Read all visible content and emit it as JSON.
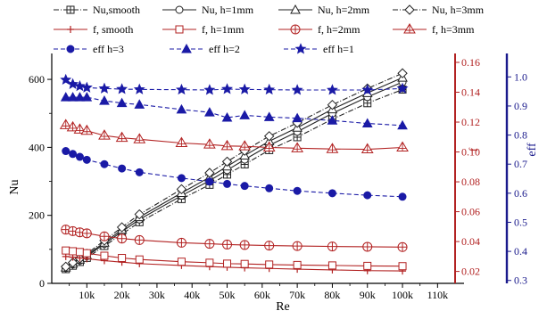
{
  "chart_data": {
    "type": "line",
    "xlabel": "Re",
    "ylabel_left": "Nu",
    "ylabel_f": "f",
    "ylabel_eff": "eff",
    "xlim": [
      0,
      115000
    ],
    "xticks": [
      10000,
      20000,
      30000,
      40000,
      50000,
      60000,
      70000,
      80000,
      90000,
      100000,
      110000
    ],
    "xtick_labels": [
      "10k",
      "20k",
      "30k",
      "40k",
      "50k",
      "60k",
      "70k",
      "80k",
      "90k",
      "100k",
      "110k"
    ],
    "ylim_nu": [
      0,
      650
    ],
    "yticks_nu": [
      0,
      200,
      400,
      600
    ],
    "ylim_f": [
      0.012,
      0.16
    ],
    "yticks_f": [
      0.02,
      0.04,
      0.06,
      0.08,
      0.1,
      0.12,
      0.14,
      0.16
    ],
    "ytick_f_labels": [
      "0.02",
      "0.04",
      "0.06",
      "0.08",
      "0.10",
      "0.12",
      "0.14",
      "0.16"
    ],
    "ylim_eff": [
      0.29,
      1.05
    ],
    "yticks_eff": [
      0.3,
      0.4,
      0.5,
      0.6,
      0.7,
      0.8,
      0.9,
      1.0
    ],
    "ytick_eff_labels": [
      "0.3",
      "0.4",
      "0.5",
      "0.6",
      "0.7",
      "0.8",
      "0.9",
      "1.0"
    ],
    "colors": {
      "nu": "#222222",
      "f": "#b22222",
      "eff": "#1a1aa6",
      "f_axis": "#b22222",
      "eff_axis": "#1a1a8c"
    },
    "legend": [
      [
        {
          "label": "Nu,smooth",
          "series": "nu_smooth"
        },
        {
          "label": "Nu, h=1mm",
          "series": "nu_h1"
        },
        {
          "label": "Nu, h=2mm",
          "series": "nu_h2"
        },
        {
          "label": "Nu, h=3mm",
          "series": "nu_h3"
        }
      ],
      [
        {
          "label": "f, smooth",
          "series": "f_smooth"
        },
        {
          "label": "f, h=1mm",
          "series": "f_h1"
        },
        {
          "label": "f, h=2mm",
          "series": "f_h2"
        },
        {
          "label": "f, h=3mm",
          "series": "f_h3"
        }
      ],
      [
        {
          "label": "eff h=3",
          "series": "eff_h3"
        },
        {
          "label": "eff h=2",
          "series": "eff_h2"
        },
        {
          "label": "eff h=1",
          "series": "eff_h1"
        }
      ]
    ],
    "series": [
      {
        "id": "nu_smooth",
        "name": "Nu,smooth",
        "axis": "nu",
        "marker": "square-cross",
        "dash": "6,2,1,2",
        "x": [
          4000,
          6000,
          8000,
          10000,
          15000,
          20000,
          25000,
          37000,
          45000,
          50000,
          55000,
          62000,
          70000,
          80000,
          90000,
          100000
        ],
        "y": [
          42,
          52,
          63,
          75,
          110,
          145,
          180,
          248,
          290,
          320,
          350,
          392,
          430,
          483,
          530,
          570
        ]
      },
      {
        "id": "nu_h1",
        "name": "Nu, h=1mm",
        "axis": "nu",
        "marker": "circle",
        "dash": "",
        "x": [
          4000,
          6000,
          8000,
          10000,
          15000,
          20000,
          25000,
          37000,
          45000,
          50000,
          55000,
          62000,
          70000,
          80000,
          90000,
          100000
        ],
        "y": [
          45,
          56,
          67,
          80,
          116,
          152,
          188,
          258,
          302,
          333,
          364,
          406,
          446,
          500,
          548,
          592
        ]
      },
      {
        "id": "nu_h2",
        "name": "Nu, h=2mm",
        "axis": "nu",
        "marker": "triangle",
        "dash": "",
        "x": [
          4000,
          6000,
          8000,
          10000,
          15000,
          20000,
          25000,
          37000,
          45000,
          50000,
          55000,
          62000,
          70000,
          80000,
          90000,
          100000
        ],
        "y": [
          47,
          58,
          70,
          83,
          120,
          158,
          195,
          266,
          312,
          344,
          376,
          418,
          458,
          512,
          560,
          605
        ]
      },
      {
        "id": "nu_h3",
        "name": "Nu, h=3mm",
        "axis": "nu",
        "marker": "diamond",
        "dash": "6,2,1,2",
        "x": [
          4000,
          6000,
          8000,
          10000,
          15000,
          20000,
          25000,
          37000,
          45000,
          50000,
          55000,
          62000,
          70000,
          80000,
          90000,
          100000
        ],
        "y": [
          49,
          61,
          73,
          87,
          126,
          165,
          203,
          277,
          325,
          358,
          390,
          433,
          472,
          525,
          573,
          618
        ]
      },
      {
        "id": "f_smooth",
        "name": "f, smooth",
        "axis": "f",
        "marker": "plus",
        "dash": "",
        "x": [
          4000,
          6000,
          8000,
          10000,
          15000,
          20000,
          25000,
          37000,
          45000,
          50000,
          55000,
          62000,
          70000,
          80000,
          90000,
          100000
        ],
        "y": [
          0.03,
          0.0295,
          0.029,
          0.0285,
          0.0272,
          0.0262,
          0.0252,
          0.024,
          0.0232,
          0.0228,
          0.0224,
          0.022,
          0.0215,
          0.021,
          0.0205,
          0.0203
        ]
      },
      {
        "id": "f_h1",
        "name": "f, h=1mm",
        "axis": "f",
        "marker": "square",
        "dash": "",
        "x": [
          4000,
          6000,
          8000,
          10000,
          15000,
          20000,
          25000,
          37000,
          45000,
          50000,
          55000,
          62000,
          70000,
          80000,
          90000,
          100000
        ],
        "y": [
          0.034,
          0.0335,
          0.033,
          0.0322,
          0.0305,
          0.029,
          0.028,
          0.0265,
          0.0258,
          0.0252,
          0.025,
          0.0246,
          0.0243,
          0.024,
          0.0237,
          0.0235
        ]
      },
      {
        "id": "f_h2",
        "name": "f, h=2mm",
        "axis": "f",
        "marker": "circle-cross",
        "dash": "",
        "x": [
          4000,
          6000,
          8000,
          10000,
          15000,
          20000,
          25000,
          37000,
          45000,
          50000,
          55000,
          62000,
          70000,
          80000,
          90000,
          100000
        ],
        "y": [
          0.048,
          0.047,
          0.0462,
          0.0455,
          0.0435,
          0.042,
          0.041,
          0.0392,
          0.0385,
          0.038,
          0.0377,
          0.0373,
          0.037,
          0.0367,
          0.0365,
          0.0363
        ]
      },
      {
        "id": "f_h3",
        "name": "f, h=3mm",
        "axis": "f",
        "marker": "triangle-cross",
        "dash": "",
        "x": [
          4000,
          6000,
          8000,
          10000,
          15000,
          20000,
          25000,
          37000,
          45000,
          50000,
          55000,
          62000,
          70000,
          80000,
          90000,
          100000
        ],
        "y": [
          0.118,
          0.1165,
          0.115,
          0.1142,
          0.111,
          0.1095,
          0.1085,
          0.106,
          0.105,
          0.104,
          0.1038,
          0.103,
          0.1025,
          0.102,
          0.1018,
          0.103
        ]
      },
      {
        "id": "eff_h3",
        "name": "eff h=3",
        "axis": "eff",
        "marker": "dot",
        "dash": "5,3",
        "x": [
          4000,
          6000,
          8000,
          10000,
          15000,
          20000,
          25000,
          37000,
          45000,
          50000,
          55000,
          62000,
          70000,
          80000,
          90000,
          100000
        ],
        "y": [
          0.745,
          0.735,
          0.725,
          0.715,
          0.7,
          0.685,
          0.672,
          0.652,
          0.64,
          0.632,
          0.625,
          0.617,
          0.608,
          0.6,
          0.593,
          0.588
        ]
      },
      {
        "id": "eff_h2",
        "name": "eff h=2",
        "axis": "eff",
        "marker": "triangle-filled",
        "dash": "5,3",
        "x": [
          4000,
          6000,
          8000,
          10000,
          15000,
          20000,
          25000,
          37000,
          45000,
          50000,
          55000,
          62000,
          70000,
          80000,
          90000,
          100000
        ],
        "y": [
          0.93,
          0.93,
          0.93,
          0.93,
          0.918,
          0.91,
          0.905,
          0.888,
          0.878,
          0.86,
          0.868,
          0.862,
          0.858,
          0.85,
          0.84,
          0.833
        ]
      },
      {
        "id": "eff_h1",
        "name": "eff h=1",
        "axis": "eff",
        "marker": "star",
        "dash": "5,3",
        "x": [
          4000,
          6000,
          8000,
          10000,
          15000,
          20000,
          25000,
          37000,
          45000,
          50000,
          55000,
          62000,
          70000,
          80000,
          90000,
          100000
        ],
        "y": [
          0.99,
          0.975,
          0.968,
          0.963,
          0.96,
          0.958,
          0.957,
          0.956,
          0.955,
          0.958,
          0.957,
          0.956,
          0.955,
          0.955,
          0.955,
          0.96
        ]
      }
    ]
  }
}
